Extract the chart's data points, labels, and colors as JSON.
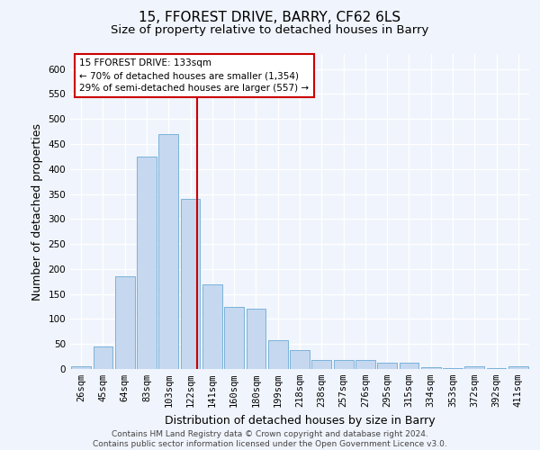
{
  "title_line1": "15, FFOREST DRIVE, BARRY, CF62 6LS",
  "title_line2": "Size of property relative to detached houses in Barry",
  "xlabel": "Distribution of detached houses by size in Barry",
  "ylabel": "Number of detached properties",
  "categories": [
    "26sqm",
    "45sqm",
    "64sqm",
    "83sqm",
    "103sqm",
    "122sqm",
    "141sqm",
    "160sqm",
    "180sqm",
    "199sqm",
    "218sqm",
    "238sqm",
    "257sqm",
    "276sqm",
    "295sqm",
    "315sqm",
    "334sqm",
    "353sqm",
    "372sqm",
    "392sqm",
    "411sqm"
  ],
  "values": [
    5,
    45,
    185,
    425,
    470,
    340,
    170,
    125,
    120,
    58,
    38,
    18,
    18,
    18,
    12,
    12,
    3,
    1,
    5,
    2,
    5
  ],
  "bar_color": "#c5d8f0",
  "bar_edge_color": "#6aaad4",
  "vline_color": "#cc0000",
  "vline_pos": 5.3,
  "annotation_text": "15 FFOREST DRIVE: 133sqm\n← 70% of detached houses are smaller (1,354)\n29% of semi-detached houses are larger (557) →",
  "annotation_box_color": "#ffffff",
  "annotation_box_edge_color": "#cc0000",
  "ylim": [
    0,
    630
  ],
  "yticks": [
    0,
    50,
    100,
    150,
    200,
    250,
    300,
    350,
    400,
    450,
    500,
    550,
    600
  ],
  "footnote": "Contains HM Land Registry data © Crown copyright and database right 2024.\nContains public sector information licensed under the Open Government Licence v3.0.",
  "bg_color": "#f0f4fc",
  "plot_bg_color": "#f0f4fc",
  "grid_color": "#ffffff",
  "title_fontsize": 11,
  "subtitle_fontsize": 9.5,
  "label_fontsize": 9,
  "tick_fontsize": 7.5,
  "footnote_fontsize": 6.5
}
